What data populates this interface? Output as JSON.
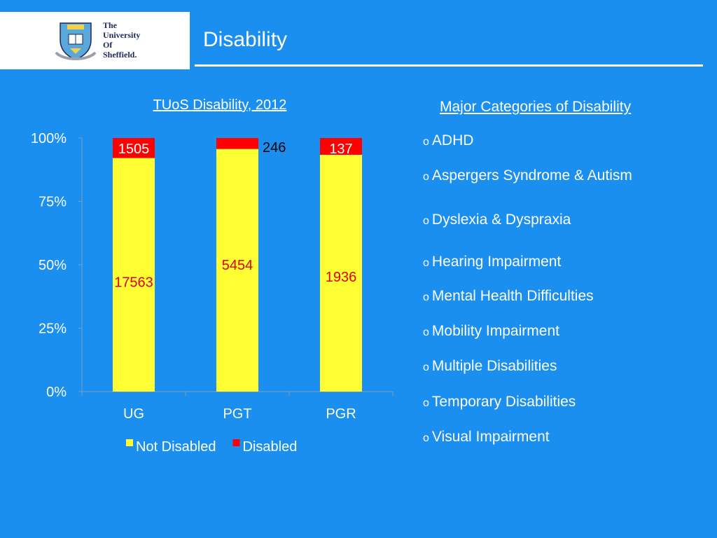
{
  "header": {
    "title": "Disability",
    "logo": {
      "lines": [
        "The",
        "University",
        "Of",
        "Sheffield."
      ],
      "icon": "university-crest-icon"
    }
  },
  "chart_data": {
    "type": "bar",
    "stacked": true,
    "normalized": true,
    "title": "TUoS Disability, 2012",
    "categories": [
      "UG",
      "PGT",
      "PGR"
    ],
    "series": [
      {
        "name": "Not Disabled",
        "color": "#ffff33",
        "label_color": "#e00000",
        "values": [
          17563,
          5454,
          1936
        ]
      },
      {
        "name": "Disabled",
        "color": "#ff0000",
        "values": [
          1505,
          246,
          137
        ]
      }
    ],
    "yticks": [
      "0%",
      "25%",
      "50%",
      "75%",
      "100%"
    ],
    "ylim": [
      0,
      100
    ],
    "legend": "bottom"
  },
  "categories_panel": {
    "title": "Major Categories of Disability",
    "bullet": "o",
    "items": [
      "ADHD",
      "Aspergers Syndrome & Autism",
      "Dyslexia & Dyspraxia",
      "Hearing Impairment",
      "Mental Health Difficulties",
      "Mobility Impairment",
      "Multiple Disabilities",
      "Temporary Disabilities",
      "Visual Impairment"
    ]
  }
}
